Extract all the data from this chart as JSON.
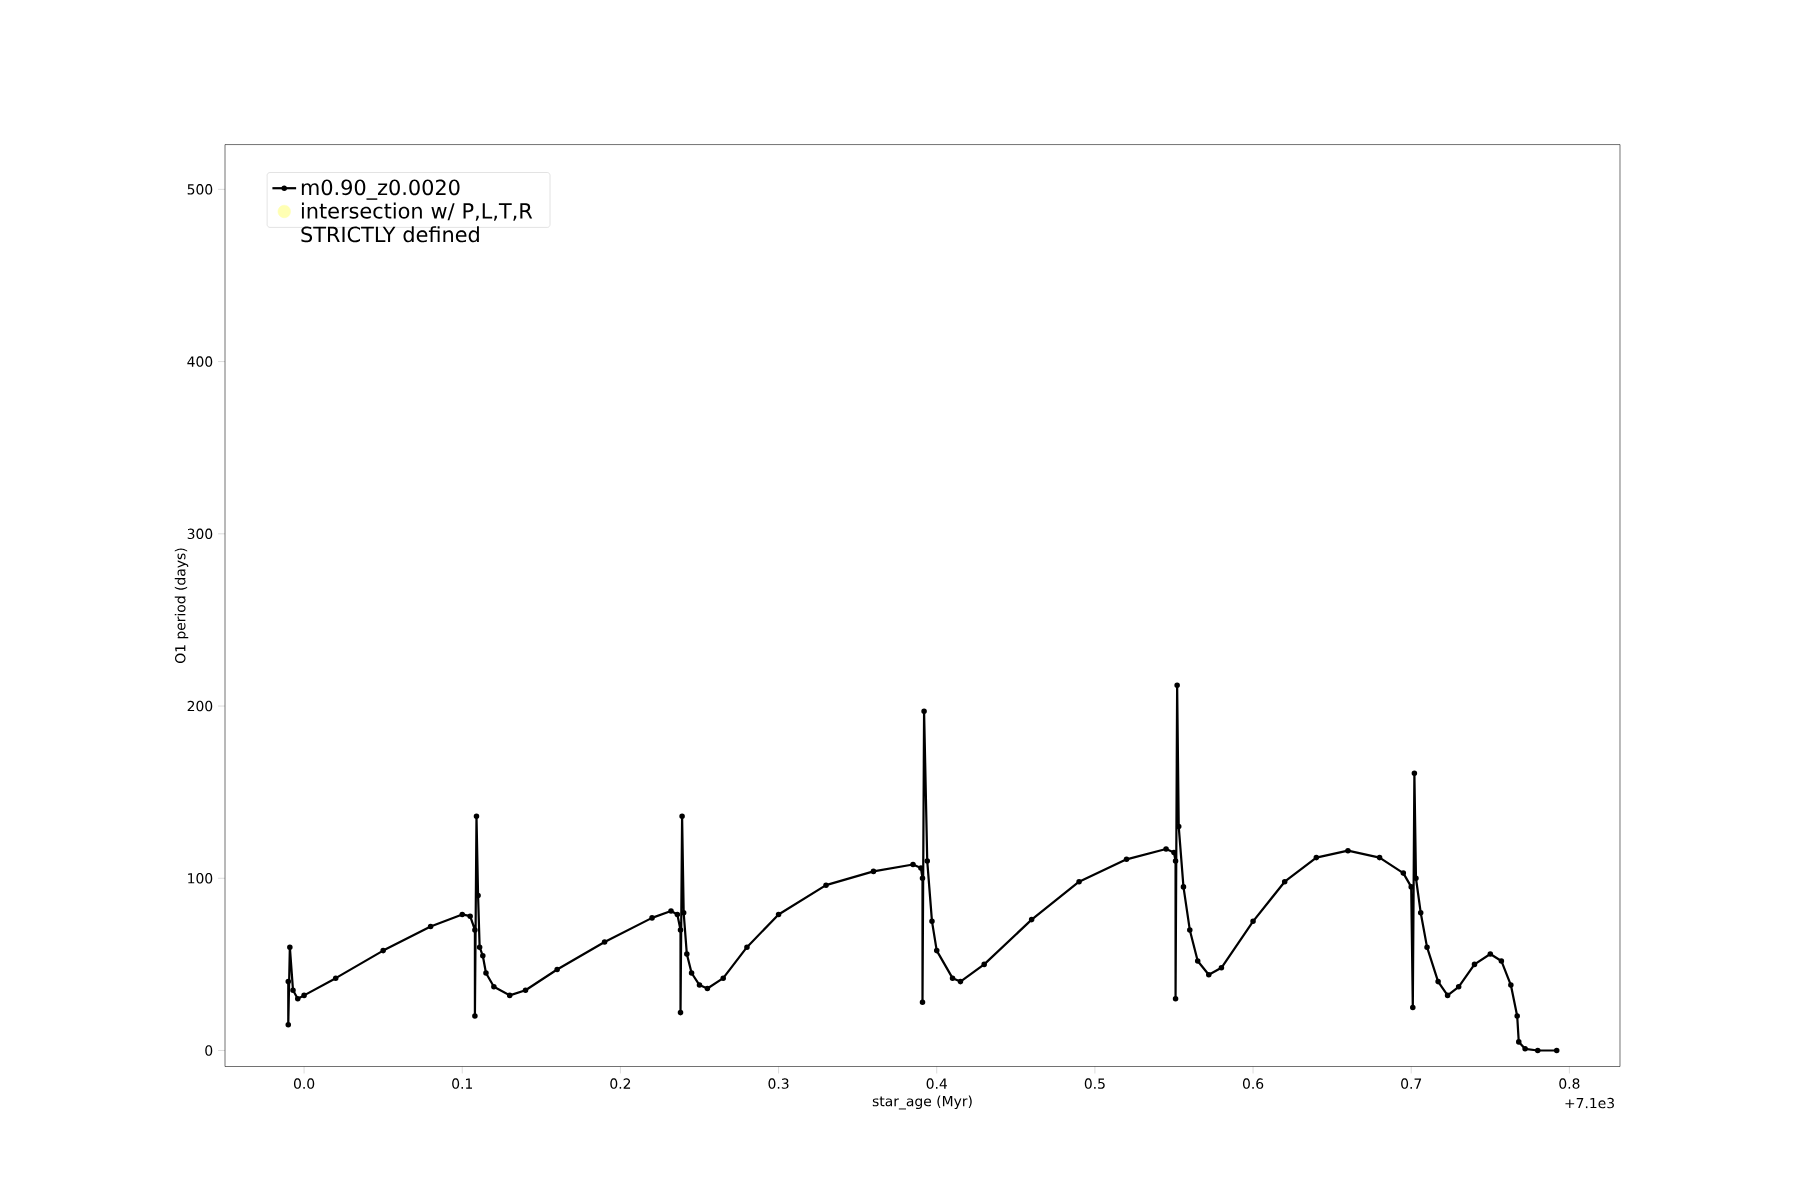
{
  "chart_data": {
    "type": "line",
    "xlabel": "star_age (Myr)",
    "ylabel": "O1 period (days)",
    "xlim": [
      -0.05,
      0.832
    ],
    "ylim": [
      -9.3,
      526
    ],
    "xticks": [
      {
        "value": 0,
        "label": "0.0"
      },
      0.1,
      0.2,
      0.3,
      0.4,
      0.5,
      0.6,
      0.7,
      0.8
    ],
    "yticks": [
      0,
      100,
      200,
      300,
      400,
      500
    ],
    "legend": "top left",
    "marker": "circle",
    "line_style": "solid",
    "annotations": [
      "+7.1e3"
    ],
    "series": [
      {
        "name": "m0.90_z0.0020",
        "color": "#000000",
        "x": [
          -0.01,
          -0.01,
          -0.009,
          -0.007,
          -0.004,
          0.0,
          0.02,
          0.05,
          0.08,
          0.1,
          0.105,
          0.108,
          0.108,
          0.109,
          0.11,
          0.111,
          0.113,
          0.115,
          0.12,
          0.13,
          0.14,
          0.16,
          0.19,
          0.22,
          0.232,
          0.236,
          0.238,
          0.238,
          0.239,
          0.24,
          0.242,
          0.245,
          0.25,
          0.255,
          0.265,
          0.28,
          0.3,
          0.33,
          0.36,
          0.385,
          0.39,
          0.391,
          0.391,
          0.392,
          0.394,
          0.397,
          0.4,
          0.41,
          0.415,
          0.43,
          0.46,
          0.49,
          0.52,
          0.545,
          0.55,
          0.551,
          0.551,
          0.552,
          0.553,
          0.556,
          0.56,
          0.565,
          0.572,
          0.58,
          0.6,
          0.62,
          0.64,
          0.66,
          0.68,
          0.695,
          0.7,
          0.701,
          0.702,
          0.703,
          0.706,
          0.71,
          0.717,
          0.723,
          0.73,
          0.74,
          0.75,
          0.757,
          0.763,
          0.767,
          0.768,
          0.772,
          0.78,
          0.792
        ],
        "values": [
          40,
          15,
          60,
          35,
          30,
          32,
          42,
          58,
          72,
          79,
          78,
          70,
          20,
          136,
          90,
          60,
          55,
          45,
          37,
          32,
          35,
          47,
          63,
          77,
          81,
          79,
          70,
          22,
          136,
          80,
          56,
          45,
          38,
          36,
          42,
          60,
          79,
          96,
          104,
          108,
          106,
          100,
          28,
          197,
          110,
          75,
          58,
          42,
          40,
          50,
          76,
          98,
          111,
          117,
          115,
          110,
          30,
          212,
          130,
          95,
          70,
          52,
          44,
          48,
          75,
          98,
          112,
          116,
          112,
          103,
          95,
          25,
          161,
          100,
          80,
          60,
          40,
          32,
          37,
          50,
          56,
          52,
          38,
          20,
          5,
          1,
          0,
          0
        ]
      },
      {
        "name": "intersection w/ P,L,T,R STRICTLY defined",
        "type": "scatter",
        "color": "#ffffb3"
      }
    ]
  }
}
